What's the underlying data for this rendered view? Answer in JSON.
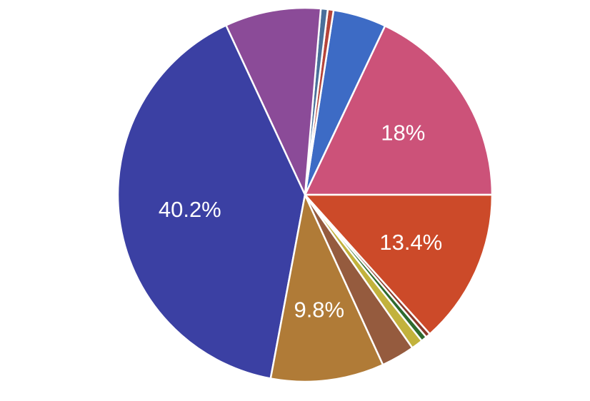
{
  "chart_data": {
    "type": "pie",
    "title": "",
    "slices": [
      {
        "value": 18.0,
        "label": "18%",
        "color": "#cc5279"
      },
      {
        "value": 4.6,
        "label": "",
        "color": "#3d6bc5"
      },
      {
        "value": 0.5,
        "label": "",
        "color": "#b5443a"
      },
      {
        "value": 0.6,
        "label": "",
        "color": "#4a6f9a"
      },
      {
        "value": 8.3,
        "label": "",
        "color": "#8b4b98"
      },
      {
        "value": 40.2,
        "label": "40.2%",
        "color": "#3b40a3"
      },
      {
        "value": 9.8,
        "label": "9.8%",
        "color": "#b07b37"
      },
      {
        "value": 2.9,
        "label": "",
        "color": "#955b3e"
      },
      {
        "value": 1.0,
        "label": "",
        "color": "#c2b23c"
      },
      {
        "value": 0.5,
        "label": "",
        "color": "#2e6a2e"
      },
      {
        "value": 0.4,
        "label": "",
        "color": "#8a3a2a"
      },
      {
        "value": 13.4,
        "label": "13.4%",
        "color": "#cc4a29"
      }
    ]
  }
}
